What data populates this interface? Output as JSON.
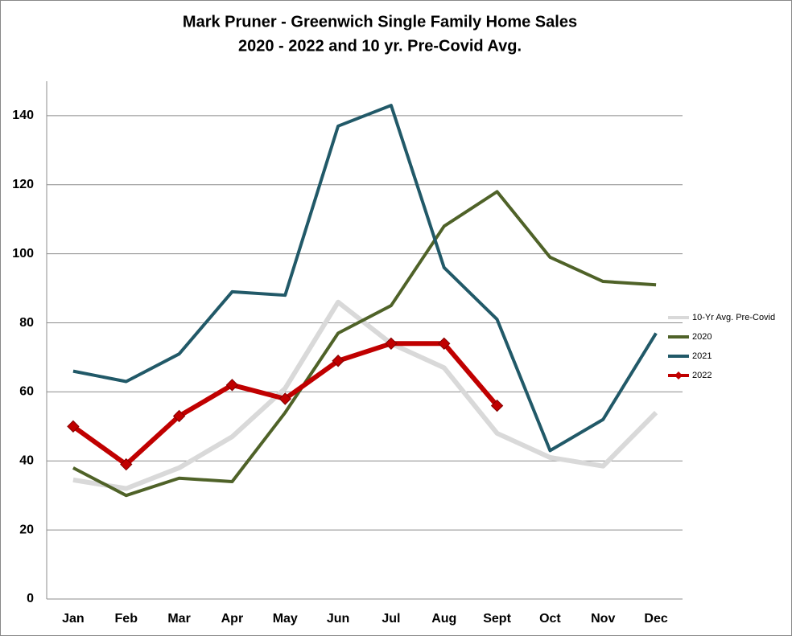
{
  "chart_data": {
    "type": "line",
    "title": "Mark Pruner - Greenwich Single Family Home Sales",
    "subtitle": "2020 - 2022 and 10 yr. Pre-Covid Avg.",
    "categories": [
      "Jan",
      "Feb",
      "Mar",
      "Apr",
      "May",
      "Jun",
      "Jul",
      "Aug",
      "Sept",
      "Oct",
      "Nov",
      "Dec"
    ],
    "series": [
      {
        "name": "10-Yr Avg. Pre-Covid",
        "color": "#d9d9d9",
        "values": [
          34.5,
          32,
          38,
          47,
          61,
          86,
          74,
          67,
          48,
          41,
          38.5,
          54
        ]
      },
      {
        "name": "2020",
        "color": "#4f6228",
        "values": [
          38,
          30,
          35,
          34,
          54,
          77,
          85,
          108,
          118,
          99,
          92,
          91
        ]
      },
      {
        "name": "2021",
        "color": "#215968",
        "values": [
          66,
          63,
          71,
          89,
          88,
          137,
          143,
          96,
          81,
          43,
          52,
          77
        ]
      },
      {
        "name": "2022",
        "color": "#c00000",
        "values": [
          50,
          39,
          53,
          62,
          58,
          69,
          74,
          74,
          56,
          null,
          null,
          null
        ],
        "marker": "diamond"
      }
    ],
    "ylim": [
      0,
      150
    ],
    "yticks": [
      0,
      20,
      40,
      60,
      80,
      100,
      120,
      140
    ],
    "grid": true,
    "legend": "right"
  }
}
